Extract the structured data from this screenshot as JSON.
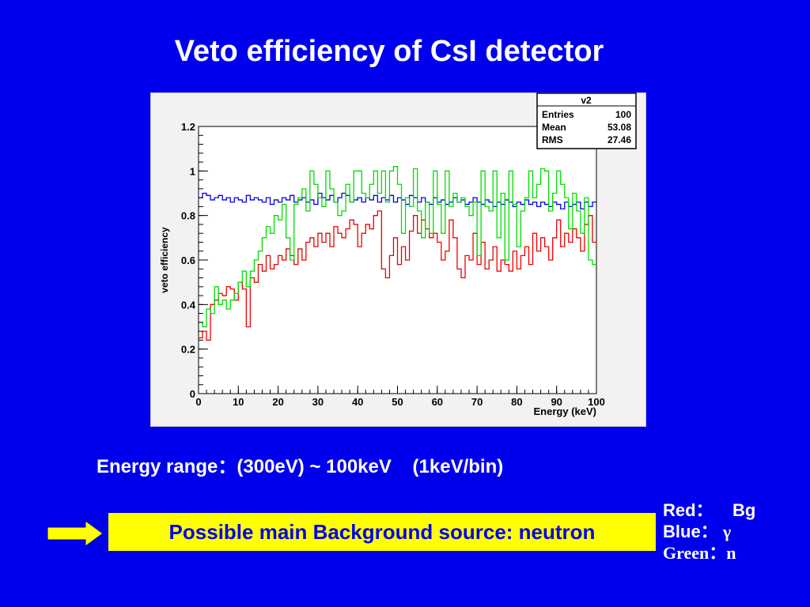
{
  "slide": {
    "title": "Veto efficiency of CsI detector",
    "range_text": "Energy range：(300eV) ~ 100keV    (1keV/bin)",
    "callout": "Possible main Background source: neutron",
    "colors": {
      "background": "#0000ee",
      "callout_fill": "#ffff00",
      "arrow_fill": "#ffff00"
    },
    "legend": {
      "red_label": "Red：",
      "red_value": "Bg",
      "blue_label": "Blue：",
      "blue_value": "γ",
      "green_label": "Green：",
      "green_value": "n"
    }
  },
  "chart_data": {
    "type": "line",
    "title": "",
    "xlabel": "Energy (keV)",
    "ylabel": "veto efficiency",
    "xlim": [
      0,
      100
    ],
    "ylim": [
      0,
      1.2
    ],
    "xticks": [
      "0",
      "10",
      "20",
      "30",
      "40",
      "50",
      "60",
      "70",
      "80",
      "90",
      "100"
    ],
    "yticks": [
      "0",
      "0.2",
      "0.4",
      "0.6",
      "0.8",
      "1",
      "1.2"
    ],
    "grid": false,
    "stats_box": {
      "name": "v2",
      "rows": [
        {
          "label": "Entries",
          "value": "100"
        },
        {
          "label": "Mean",
          "value": "53.08"
        },
        {
          "label": "RMS",
          "value": "27.46"
        }
      ]
    },
    "series": [
      {
        "color": "#ee0000",
        "values": [
          0.25,
          0.28,
          0.24,
          0.4,
          0.42,
          0.45,
          0.44,
          0.48,
          0.47,
          0.42,
          0.5,
          0.47,
          0.3,
          0.52,
          0.5,
          0.58,
          0.55,
          0.62,
          0.56,
          0.58,
          0.62,
          0.6,
          0.65,
          0.62,
          0.58,
          0.65,
          0.6,
          0.68,
          0.7,
          0.66,
          0.72,
          0.68,
          0.72,
          0.66,
          0.75,
          0.72,
          0.7,
          0.74,
          0.78,
          0.76,
          0.66,
          0.72,
          0.76,
          0.74,
          0.8,
          0.82,
          0.56,
          0.52,
          0.62,
          0.7,
          0.58,
          0.66,
          0.6,
          0.73,
          0.8,
          0.72,
          0.78,
          0.74,
          0.7,
          0.72,
          0.68,
          0.6,
          0.64,
          0.78,
          0.7,
          0.56,
          0.52,
          0.62,
          0.6,
          0.72,
          0.58,
          0.68,
          0.56,
          0.6,
          0.66,
          0.55,
          0.6,
          0.58,
          0.55,
          0.64,
          0.56,
          0.62,
          0.66,
          0.58,
          0.72,
          0.64,
          0.7,
          0.66,
          0.6,
          0.7,
          0.78,
          0.66,
          0.72,
          0.68,
          0.74,
          0.7,
          0.64,
          0.76,
          0.8,
          0.68
        ]
      },
      {
        "color": "#0000ee",
        "values": [
          0.88,
          0.9,
          0.89,
          0.87,
          0.88,
          0.89,
          0.87,
          0.88,
          0.86,
          0.88,
          0.87,
          0.86,
          0.89,
          0.87,
          0.88,
          0.87,
          0.86,
          0.88,
          0.85,
          0.87,
          0.86,
          0.88,
          0.87,
          0.89,
          0.86,
          0.87,
          0.88,
          0.86,
          0.87,
          0.85,
          0.9,
          0.88,
          0.87,
          0.89,
          0.86,
          0.88,
          0.9,
          0.89,
          0.86,
          0.87,
          0.88,
          0.86,
          0.88,
          0.87,
          0.89,
          0.86,
          0.88,
          0.87,
          0.89,
          0.86,
          0.88,
          0.87,
          0.85,
          0.89,
          0.88,
          0.86,
          0.88,
          0.86,
          0.85,
          0.88,
          0.86,
          0.87,
          0.85,
          0.86,
          0.88,
          0.86,
          0.87,
          0.85,
          0.86,
          0.88,
          0.86,
          0.85,
          0.87,
          0.86,
          0.84,
          0.86,
          0.85,
          0.87,
          0.86,
          0.84,
          0.86,
          0.85,
          0.87,
          0.85,
          0.86,
          0.84,
          0.86,
          0.85,
          0.84,
          0.86,
          0.85,
          0.83,
          0.86,
          0.84,
          0.85,
          0.86,
          0.83,
          0.86,
          0.84,
          0.86
        ]
      },
      {
        "color": "#00dd00",
        "values": [
          0.32,
          0.3,
          0.38,
          0.36,
          0.48,
          0.4,
          0.42,
          0.38,
          0.42,
          0.45,
          0.5,
          0.55,
          0.48,
          0.55,
          0.6,
          0.64,
          0.7,
          0.75,
          0.72,
          0.8,
          0.78,
          0.85,
          0.7,
          0.6,
          0.85,
          0.88,
          0.92,
          0.82,
          1.0,
          0.94,
          0.88,
          0.84,
          1.0,
          0.92,
          0.86,
          0.8,
          0.82,
          0.94,
          0.86,
          1.0,
          1.0,
          0.9,
          0.88,
          0.94,
          1.0,
          0.9,
          1.0,
          0.86,
          1.0,
          1.02,
          0.94,
          0.72,
          0.88,
          0.84,
          1.01,
          0.82,
          0.7,
          0.86,
          0.72,
          1.0,
          0.85,
          0.72,
          1.0,
          0.84,
          0.9,
          0.86,
          0.88,
          0.84,
          0.8,
          0.86,
          0.62,
          1.0,
          0.84,
          0.82,
          1.0,
          0.7,
          0.9,
          0.6,
          1.0,
          0.85,
          0.66,
          0.82,
          0.88,
          1.0,
          0.88,
          0.94,
          1.01,
          1.0,
          0.82,
          0.9,
          1.0,
          0.94,
          0.88,
          0.74,
          0.9,
          0.82,
          0.72,
          0.88,
          0.6,
          0.58
        ]
      }
    ]
  }
}
